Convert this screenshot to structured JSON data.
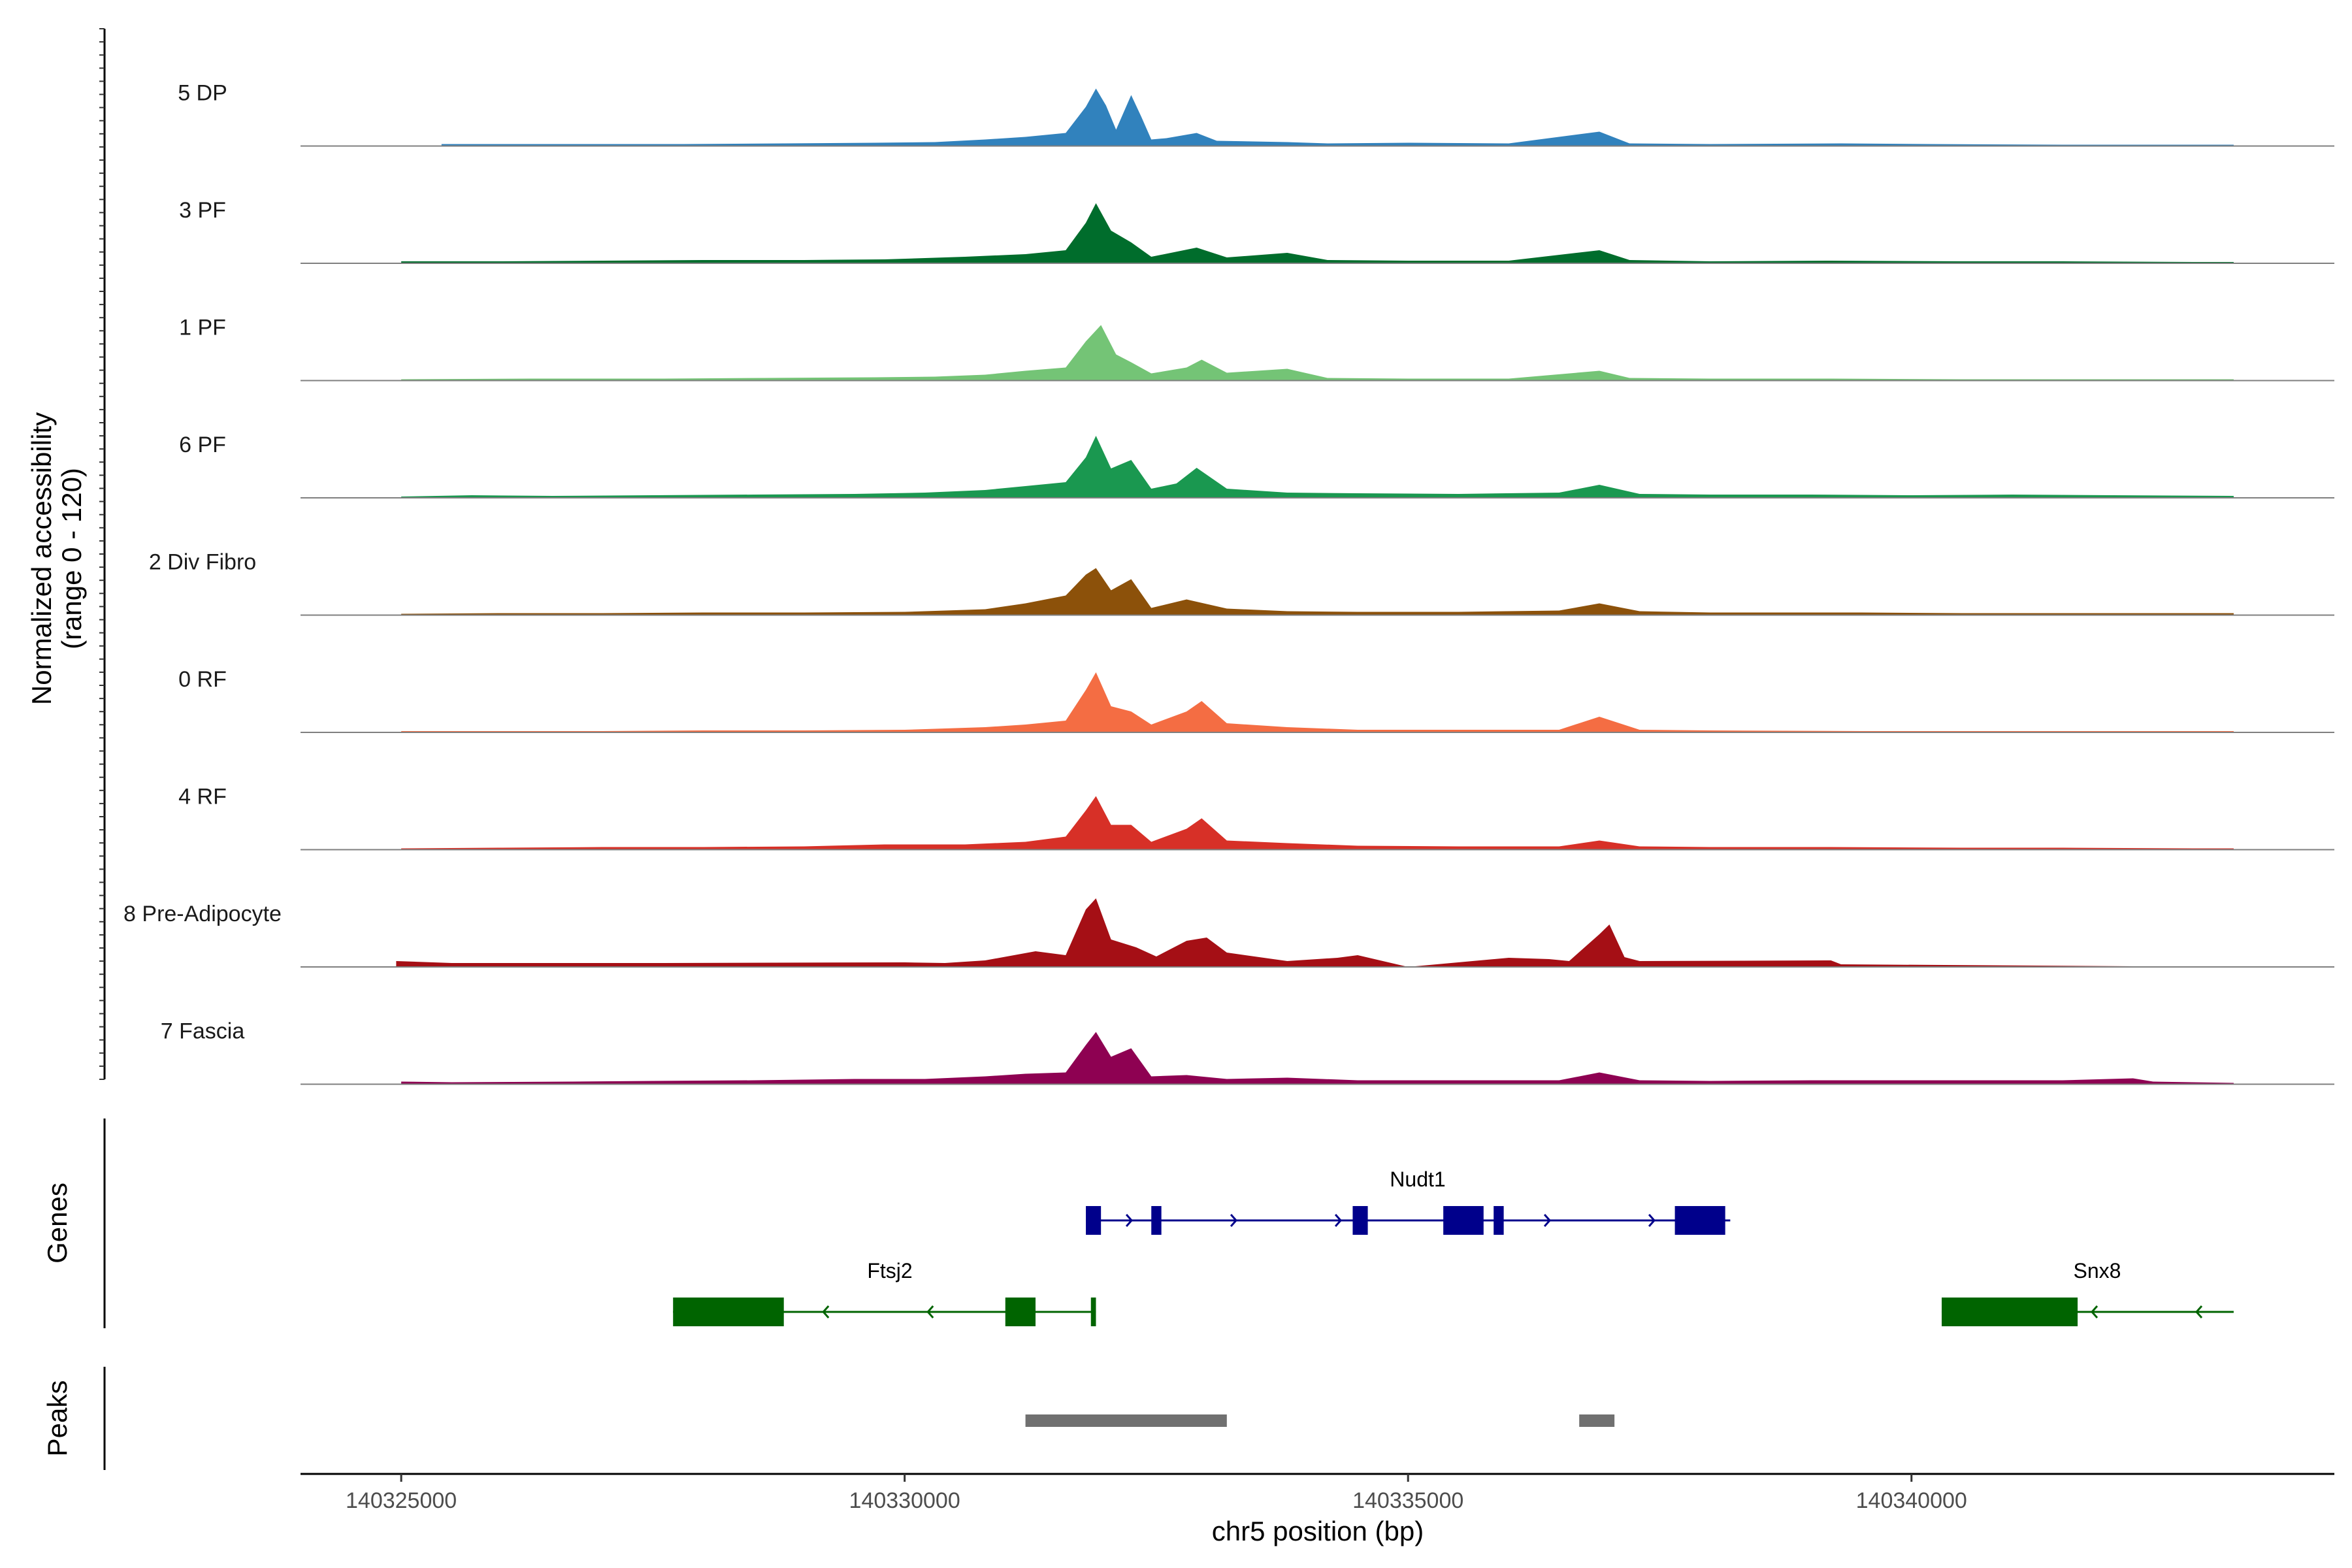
{
  "chart_data": {
    "type": "area",
    "title": "",
    "ylabel": "Normalized accessibility",
    "ylabel_range": "(range 0 - 120)",
    "xlabel": "chr5 position (bp)",
    "xlim": [
      140324000,
      140344200
    ],
    "ylim": [
      0,
      120
    ],
    "x_ticks": [
      140325000,
      140330000,
      140335000,
      140340000
    ],
    "x_tick_labels": [
      "140325000",
      "140330000",
      "140335000",
      "140340000"
    ],
    "series": [
      {
        "name": "5 DP",
        "color": "#3182bd",
        "points": [
          [
            140325400,
            3
          ],
          [
            140326500,
            3
          ],
          [
            140327800,
            3
          ],
          [
            140328800,
            4
          ],
          [
            140329700,
            5
          ],
          [
            140330300,
            6
          ],
          [
            140330800,
            10
          ],
          [
            140331200,
            14
          ],
          [
            140331600,
            20
          ],
          [
            140331800,
            60
          ],
          [
            140331900,
            88
          ],
          [
            140332000,
            62
          ],
          [
            140332100,
            25
          ],
          [
            140332250,
            78
          ],
          [
            140332350,
            45
          ],
          [
            140332450,
            10
          ],
          [
            140332600,
            12
          ],
          [
            140332900,
            20
          ],
          [
            140333100,
            8
          ],
          [
            140333800,
            6
          ],
          [
            140334200,
            4
          ],
          [
            140335000,
            5
          ],
          [
            140336000,
            4
          ],
          [
            140336900,
            22
          ],
          [
            140337200,
            4
          ],
          [
            140338000,
            3
          ],
          [
            140339300,
            4
          ],
          [
            140340200,
            3
          ],
          [
            140341500,
            2
          ],
          [
            140342600,
            2
          ],
          [
            140343200,
            2
          ]
        ]
      },
      {
        "name": "3 PF",
        "color": "#006d2c",
        "points": [
          [
            140325000,
            3
          ],
          [
            140326000,
            3
          ],
          [
            140327000,
            4
          ],
          [
            140328000,
            5
          ],
          [
            140329000,
            5
          ],
          [
            140329800,
            6
          ],
          [
            140330600,
            10
          ],
          [
            140331200,
            14
          ],
          [
            140331600,
            20
          ],
          [
            140331800,
            62
          ],
          [
            140331900,
            92
          ],
          [
            140332050,
            50
          ],
          [
            140332250,
            32
          ],
          [
            140332450,
            10
          ],
          [
            140332900,
            24
          ],
          [
            140333200,
            9
          ],
          [
            140333800,
            16
          ],
          [
            140334200,
            5
          ],
          [
            140335000,
            4
          ],
          [
            140336000,
            4
          ],
          [
            140336900,
            20
          ],
          [
            140337200,
            5
          ],
          [
            140338000,
            3
          ],
          [
            140339200,
            4
          ],
          [
            140340500,
            3
          ],
          [
            140341500,
            3
          ],
          [
            140342800,
            2
          ],
          [
            140343200,
            2
          ]
        ]
      },
      {
        "name": "1 PF",
        "color": "#74c476",
        "points": [
          [
            140325000,
            2
          ],
          [
            140326300,
            3
          ],
          [
            140327600,
            3
          ],
          [
            140328600,
            4
          ],
          [
            140329700,
            5
          ],
          [
            140330300,
            6
          ],
          [
            140330800,
            9
          ],
          [
            140331200,
            15
          ],
          [
            140331600,
            20
          ],
          [
            140331800,
            60
          ],
          [
            140331950,
            85
          ],
          [
            140332100,
            40
          ],
          [
            140332250,
            28
          ],
          [
            140332450,
            11
          ],
          [
            140332800,
            20
          ],
          [
            140332950,
            32
          ],
          [
            140333200,
            12
          ],
          [
            140333800,
            18
          ],
          [
            140334200,
            4
          ],
          [
            140335000,
            3
          ],
          [
            140336000,
            3
          ],
          [
            140336900,
            15
          ],
          [
            140337200,
            4
          ],
          [
            140338000,
            3
          ],
          [
            140339200,
            3
          ],
          [
            140340500,
            2
          ],
          [
            140341500,
            2
          ],
          [
            140342800,
            2
          ],
          [
            140343200,
            2
          ]
        ]
      },
      {
        "name": "6 PF",
        "color": "#1a9850",
        "points": [
          [
            140325000,
            2
          ],
          [
            140325700,
            4
          ],
          [
            140326500,
            3
          ],
          [
            140327500,
            4
          ],
          [
            140328500,
            5
          ],
          [
            140329500,
            6
          ],
          [
            140330200,
            8
          ],
          [
            140330800,
            12
          ],
          [
            140331200,
            18
          ],
          [
            140331600,
            24
          ],
          [
            140331800,
            62
          ],
          [
            140331900,
            95
          ],
          [
            140332050,
            45
          ],
          [
            140332250,
            58
          ],
          [
            140332450,
            14
          ],
          [
            140332700,
            22
          ],
          [
            140332900,
            46
          ],
          [
            140333200,
            14
          ],
          [
            140333800,
            8
          ],
          [
            140334500,
            7
          ],
          [
            140335500,
            6
          ],
          [
            140336500,
            8
          ],
          [
            140336900,
            20
          ],
          [
            140337300,
            6
          ],
          [
            140338000,
            5
          ],
          [
            140339000,
            5
          ],
          [
            140340000,
            4
          ],
          [
            140341000,
            5
          ],
          [
            140342000,
            4
          ],
          [
            140343200,
            3
          ]
        ]
      },
      {
        "name": "2 Div Fibro",
        "color": "#8c510a",
        "points": [
          [
            140325000,
            2
          ],
          [
            140326000,
            3
          ],
          [
            140327000,
            3
          ],
          [
            140328000,
            4
          ],
          [
            140329000,
            4
          ],
          [
            140330000,
            5
          ],
          [
            140330800,
            9
          ],
          [
            140331200,
            18
          ],
          [
            140331600,
            30
          ],
          [
            140331800,
            62
          ],
          [
            140331900,
            72
          ],
          [
            140332050,
            38
          ],
          [
            140332250,
            55
          ],
          [
            140332450,
            11
          ],
          [
            140332800,
            24
          ],
          [
            140333200,
            10
          ],
          [
            140333800,
            6
          ],
          [
            140334500,
            5
          ],
          [
            140335500,
            5
          ],
          [
            140336500,
            7
          ],
          [
            140336900,
            18
          ],
          [
            140337300,
            6
          ],
          [
            140338000,
            4
          ],
          [
            140339500,
            4
          ],
          [
            140340500,
            3
          ],
          [
            140341500,
            3
          ],
          [
            140342500,
            3
          ],
          [
            140343200,
            3
          ]
        ]
      },
      {
        "name": "0 RF",
        "color": "#f46d43",
        "points": [
          [
            140325000,
            2
          ],
          [
            140326000,
            2
          ],
          [
            140327000,
            2
          ],
          [
            140328000,
            3
          ],
          [
            140329000,
            3
          ],
          [
            140330000,
            4
          ],
          [
            140330800,
            8
          ],
          [
            140331200,
            12
          ],
          [
            140331600,
            18
          ],
          [
            140331800,
            65
          ],
          [
            140331900,
            92
          ],
          [
            140332050,
            40
          ],
          [
            140332250,
            32
          ],
          [
            140332450,
            12
          ],
          [
            140332800,
            32
          ],
          [
            140332950,
            48
          ],
          [
            140333200,
            14
          ],
          [
            140333800,
            8
          ],
          [
            140334500,
            4
          ],
          [
            140335500,
            4
          ],
          [
            140336500,
            4
          ],
          [
            140336900,
            24
          ],
          [
            140337300,
            4
          ],
          [
            140338000,
            3
          ],
          [
            140339500,
            2
          ],
          [
            140340500,
            2
          ],
          [
            140341500,
            2
          ],
          [
            140342800,
            2
          ],
          [
            140343200,
            2
          ]
        ]
      },
      {
        "name": "4 RF",
        "color": "#d73027",
        "points": [
          [
            140325000,
            2
          ],
          [
            140326000,
            3
          ],
          [
            140327000,
            4
          ],
          [
            140328000,
            4
          ],
          [
            140329000,
            5
          ],
          [
            140329800,
            8
          ],
          [
            140330600,
            8
          ],
          [
            140331200,
            12
          ],
          [
            140331600,
            20
          ],
          [
            140331800,
            60
          ],
          [
            140331900,
            82
          ],
          [
            140332050,
            38
          ],
          [
            140332250,
            38
          ],
          [
            140332450,
            12
          ],
          [
            140332800,
            32
          ],
          [
            140332950,
            48
          ],
          [
            140333200,
            14
          ],
          [
            140333800,
            10
          ],
          [
            140334500,
            6
          ],
          [
            140335500,
            5
          ],
          [
            140336500,
            5
          ],
          [
            140336900,
            14
          ],
          [
            140337300,
            5
          ],
          [
            140338000,
            4
          ],
          [
            140339200,
            4
          ],
          [
            140340500,
            3
          ],
          [
            140341500,
            3
          ],
          [
            140342800,
            2
          ],
          [
            140343200,
            2
          ]
        ]
      },
      {
        "name": "8 Pre-Adipocyte",
        "color": "#a50f15",
        "points": [
          [
            140324950,
            9
          ],
          [
            140325500,
            6
          ],
          [
            140326000,
            6
          ],
          [
            140327200,
            6
          ],
          [
            140327600,
            6
          ],
          [
            140330000,
            7
          ],
          [
            140330400,
            6
          ],
          [
            140330800,
            10
          ],
          [
            140331300,
            24
          ],
          [
            140331600,
            18
          ],
          [
            140331800,
            88
          ],
          [
            140331900,
            105
          ],
          [
            140332050,
            42
          ],
          [
            140332300,
            30
          ],
          [
            140332500,
            16
          ],
          [
            140332800,
            40
          ],
          [
            140333000,
            45
          ],
          [
            140333200,
            22
          ],
          [
            140333800,
            9
          ],
          [
            140334300,
            14
          ],
          [
            140334500,
            18
          ],
          [
            140335000,
            0
          ],
          [
            140336000,
            14
          ],
          [
            140336400,
            12
          ],
          [
            140336600,
            9
          ],
          [
            140336900,
            50
          ],
          [
            140337000,
            65
          ],
          [
            140337150,
            15
          ],
          [
            140337300,
            9
          ],
          [
            140339200,
            10
          ],
          [
            140339300,
            4
          ],
          [
            140343200,
            0
          ]
        ]
      },
      {
        "name": "7 Fascia",
        "color": "#8e0152",
        "points": [
          [
            140325000,
            4
          ],
          [
            140325500,
            3
          ],
          [
            140326700,
            4
          ],
          [
            140327500,
            5
          ],
          [
            140328500,
            6
          ],
          [
            140329500,
            8
          ],
          [
            140330200,
            8
          ],
          [
            140330800,
            12
          ],
          [
            140331200,
            16
          ],
          [
            140331600,
            18
          ],
          [
            140331800,
            60
          ],
          [
            140331900,
            80
          ],
          [
            140332050,
            42
          ],
          [
            140332250,
            55
          ],
          [
            140332450,
            12
          ],
          [
            140332800,
            14
          ],
          [
            140333200,
            8
          ],
          [
            140333800,
            10
          ],
          [
            140334500,
            6
          ],
          [
            140335500,
            6
          ],
          [
            140336500,
            6
          ],
          [
            140336900,
            18
          ],
          [
            140337300,
            6
          ],
          [
            140338000,
            5
          ],
          [
            140339000,
            6
          ],
          [
            140340500,
            6
          ],
          [
            140341500,
            6
          ],
          [
            140342200,
            9
          ],
          [
            140342400,
            4
          ],
          [
            140343200,
            2
          ]
        ]
      }
    ],
    "genes": [
      {
        "name": "Nudt1",
        "strand": "+",
        "color": "#00008b",
        "start": 140331800,
        "end": 140338200,
        "exons": [
          [
            140331800,
            140331950
          ],
          [
            140332450,
            140332550
          ],
          [
            140334450,
            140334600
          ],
          [
            140335350,
            140335750
          ],
          [
            140335850,
            140335950
          ],
          [
            140337650,
            140338150
          ]
        ]
      },
      {
        "name": "Ftsj2",
        "strand": "-",
        "color": "#006400",
        "start": 140327700,
        "end": 140331900,
        "exons": [
          [
            140327700,
            140328800
          ],
          [
            140331000,
            140331300
          ],
          [
            140331850,
            140331900
          ]
        ]
      },
      {
        "name": "Snx8",
        "strand": "-",
        "color": "#006400",
        "start": 140340300,
        "end": 140343200,
        "exons": [
          [
            140340300,
            140341650
          ]
        ]
      }
    ],
    "peaks": [
      {
        "start": 140331200,
        "end": 140333200,
        "color": "#707070"
      },
      {
        "start": 140336700,
        "end": 140337050,
        "color": "#707070"
      }
    ],
    "panel_labels": {
      "genes": "Genes",
      "peaks": "Peaks"
    }
  }
}
